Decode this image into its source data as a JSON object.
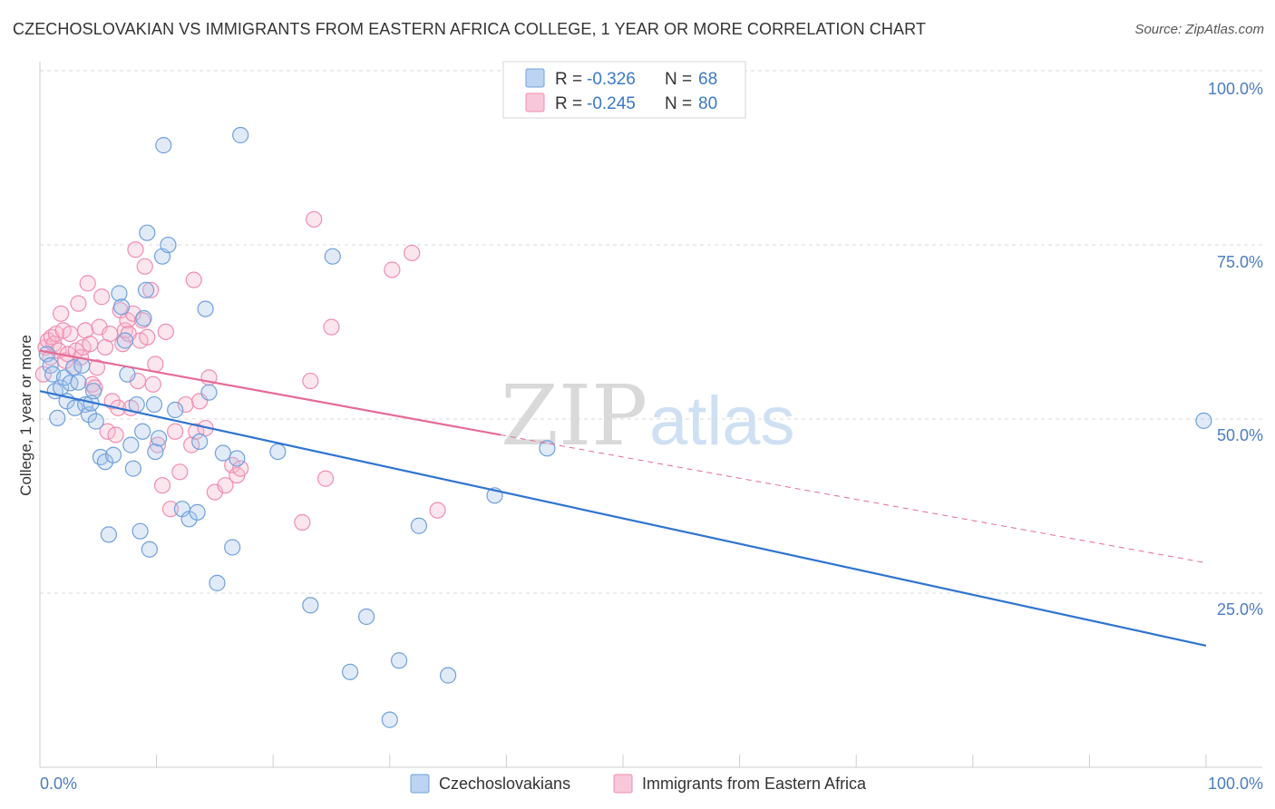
{
  "header": {
    "title": "CZECHOSLOVAKIAN VS IMMIGRANTS FROM EASTERN AFRICA COLLEGE, 1 YEAR OR MORE CORRELATION CHART",
    "source": "Source: ZipAtlas.com"
  },
  "watermark": {
    "zip": "ZIP",
    "atlas": "atlas"
  },
  "colors": {
    "blue": "#6fa0dd",
    "blue_line": "#2f74d0",
    "pink": "#f08db0",
    "pink_line": "#e56b95",
    "tick_text": "#4a7cc4",
    "grid": "#d8d8d8"
  },
  "legend": {
    "rows": [
      {
        "r_label": "R = ",
        "r_value": "-0.326",
        "n_label": "N = ",
        "n_value": "68"
      },
      {
        "r_label": "R = ",
        "r_value": "-0.245",
        "n_label": "N = ",
        "n_value": "80"
      }
    ]
  },
  "bottom_legend": [
    "Czechoslovakians",
    "Immigrants from Eastern Africa"
  ],
  "chart_data": {
    "type": "scatter",
    "title": "CZECHOSLOVAKIAN VS IMMIGRANTS FROM EASTERN AFRICA COLLEGE, 1 YEAR OR MORE CORRELATION CHART",
    "xlabel": "",
    "ylabel": "College, 1 year or more",
    "xlim": [
      0,
      100
    ],
    "ylim": [
      0,
      103
    ],
    "x_tick_labels": [
      "0.0%",
      "100.0%"
    ],
    "y_ticks": [
      25,
      50,
      75,
      100
    ],
    "y_tick_labels": [
      "25.0%",
      "50.0%",
      "75.0%",
      "100.0%"
    ],
    "grid": true,
    "legend_position": "top-center",
    "series": [
      {
        "name": "Czechoslovakians",
        "color": "#6fa0dd",
        "r": -0.326,
        "n": 68,
        "trend": {
          "x": [
            0,
            100
          ],
          "y": [
            55.0,
            17.2
          ]
        },
        "points": [
          [
            0.6,
            60.5
          ],
          [
            0.9,
            58.8
          ],
          [
            1.1,
            57.5
          ],
          [
            1.3,
            55.0
          ],
          [
            1.5,
            51.0
          ],
          [
            1.8,
            55.5
          ],
          [
            2.1,
            57.0
          ],
          [
            2.3,
            53.5
          ],
          [
            2.6,
            56.2
          ],
          [
            2.9,
            58.5
          ],
          [
            3.0,
            52.5
          ],
          [
            3.3,
            56.3
          ],
          [
            3.6,
            58.8
          ],
          [
            3.9,
            53.0
          ],
          [
            4.2,
            51.5
          ],
          [
            4.4,
            53.2
          ],
          [
            4.6,
            55.0
          ],
          [
            4.8,
            50.5
          ],
          [
            5.2,
            45.2
          ],
          [
            5.6,
            44.5
          ],
          [
            5.9,
            33.7
          ],
          [
            6.3,
            45.5
          ],
          [
            6.8,
            69.5
          ],
          [
            7.0,
            67.5
          ],
          [
            7.3,
            62.5
          ],
          [
            7.5,
            57.5
          ],
          [
            7.8,
            47.0
          ],
          [
            8.0,
            43.5
          ],
          [
            8.3,
            53.0
          ],
          [
            8.6,
            34.2
          ],
          [
            8.8,
            49.0
          ],
          [
            8.9,
            65.8
          ],
          [
            9.1,
            70.0
          ],
          [
            9.2,
            78.5
          ],
          [
            9.4,
            31.5
          ],
          [
            9.8,
            53.0
          ],
          [
            9.9,
            46.0
          ],
          [
            10.2,
            48.0
          ],
          [
            10.6,
            91.5
          ],
          [
            10.5,
            75.0
          ],
          [
            11.0,
            76.7
          ],
          [
            11.6,
            52.2
          ],
          [
            12.2,
            37.5
          ],
          [
            12.8,
            36.0
          ],
          [
            13.5,
            37.0
          ],
          [
            13.7,
            47.5
          ],
          [
            14.2,
            67.2
          ],
          [
            14.5,
            54.8
          ],
          [
            15.2,
            26.5
          ],
          [
            15.7,
            45.8
          ],
          [
            16.5,
            31.8
          ],
          [
            16.9,
            45.0
          ],
          [
            17.2,
            93.0
          ],
          [
            20.4,
            46.0
          ],
          [
            23.2,
            23.2
          ],
          [
            25.1,
            75.0
          ],
          [
            26.6,
            13.3
          ],
          [
            28.0,
            21.5
          ],
          [
            30.0,
            6.2
          ],
          [
            30.8,
            15.0
          ],
          [
            32.5,
            35.0
          ],
          [
            35.0,
            12.8
          ],
          [
            39.0,
            39.5
          ],
          [
            43.5,
            46.5
          ],
          [
            99.8,
            50.6
          ]
        ]
      },
      {
        "name": "Immigrants from Eastern Africa",
        "color": "#f08db0",
        "r": -0.245,
        "n": 80,
        "trend": {
          "x": [
            0,
            39.5
          ],
          "y": [
            61.0,
            48.5
          ]
        },
        "trend_dashed": {
          "x": [
            39.5,
            100
          ],
          "y": [
            48.5,
            29.5
          ]
        },
        "points": [
          [
            0.3,
            57.5
          ],
          [
            0.5,
            61.5
          ],
          [
            0.7,
            62.5
          ],
          [
            0.9,
            60.0
          ],
          [
            1.0,
            63.0
          ],
          [
            1.2,
            62.0
          ],
          [
            1.4,
            63.5
          ],
          [
            1.6,
            61.0
          ],
          [
            1.8,
            66.5
          ],
          [
            2.0,
            64.0
          ],
          [
            2.2,
            59.5
          ],
          [
            2.4,
            60.5
          ],
          [
            2.6,
            63.5
          ],
          [
            2.9,
            58.5
          ],
          [
            3.1,
            61.0
          ],
          [
            3.3,
            68.0
          ],
          [
            3.5,
            60.0
          ],
          [
            3.7,
            61.5
          ],
          [
            3.9,
            64.0
          ],
          [
            4.1,
            71.0
          ],
          [
            4.3,
            62.0
          ],
          [
            4.5,
            56.0
          ],
          [
            4.7,
            55.5
          ],
          [
            4.9,
            58.5
          ],
          [
            5.1,
            64.5
          ],
          [
            5.3,
            69.0
          ],
          [
            5.6,
            61.5
          ],
          [
            5.8,
            49.0
          ],
          [
            6.0,
            63.5
          ],
          [
            6.2,
            53.5
          ],
          [
            6.5,
            48.5
          ],
          [
            6.7,
            52.5
          ],
          [
            6.9,
            67.0
          ],
          [
            7.1,
            62.0
          ],
          [
            7.3,
            64.0
          ],
          [
            7.5,
            65.5
          ],
          [
            7.6,
            63.5
          ],
          [
            7.8,
            52.5
          ],
          [
            8.0,
            66.5
          ],
          [
            8.2,
            76.0
          ],
          [
            8.4,
            56.5
          ],
          [
            8.6,
            62.5
          ],
          [
            8.8,
            65.5
          ],
          [
            9.0,
            73.5
          ],
          [
            9.2,
            63.0
          ],
          [
            9.5,
            70.0
          ],
          [
            9.7,
            56.0
          ],
          [
            9.9,
            59.0
          ],
          [
            10.1,
            47.0
          ],
          [
            10.5,
            41.0
          ],
          [
            10.8,
            63.8
          ],
          [
            11.2,
            37.5
          ],
          [
            11.6,
            49.0
          ],
          [
            12.0,
            43.0
          ],
          [
            12.5,
            53.0
          ],
          [
            13.0,
            47.0
          ],
          [
            13.2,
            71.5
          ],
          [
            13.4,
            49.0
          ],
          [
            13.7,
            53.5
          ],
          [
            14.2,
            49.5
          ],
          [
            14.5,
            57.0
          ],
          [
            15.0,
            40.0
          ],
          [
            15.9,
            41.0
          ],
          [
            16.5,
            44.0
          ],
          [
            16.9,
            42.5
          ],
          [
            17.2,
            43.5
          ],
          [
            22.5,
            35.5
          ],
          [
            23.2,
            56.5
          ],
          [
            23.5,
            80.5
          ],
          [
            24.5,
            42.0
          ],
          [
            25.0,
            64.5
          ],
          [
            30.2,
            73.0
          ],
          [
            31.9,
            75.5
          ],
          [
            34.1,
            37.3
          ]
        ]
      }
    ]
  }
}
